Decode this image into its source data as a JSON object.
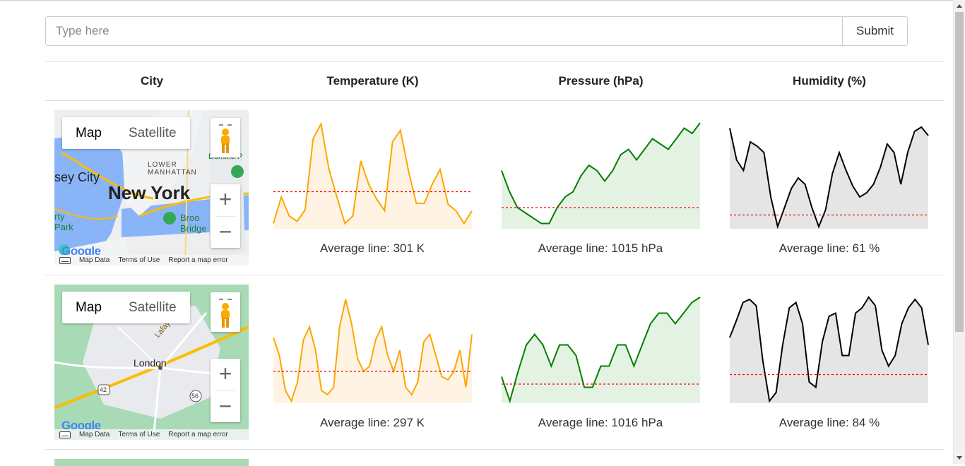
{
  "search": {
    "placeholder": "Type here",
    "value": ""
  },
  "submit_label": "Submit",
  "table": {
    "headers": [
      "City",
      "Temperature (K)",
      "Pressure (hPa)",
      "Humidity (%)"
    ]
  },
  "map_controls": {
    "map_label": "Map",
    "satellite_label": "Satellite",
    "zoom_in": "+",
    "zoom_out": "−",
    "footer": [
      "Map Data",
      "Terms of Use",
      "Report a map error"
    ],
    "logo": "Google"
  },
  "rows": [
    {
      "map_labels": {
        "city": "New York",
        "lower_manhattan": "LOWER\nMANHATTAN",
        "jersey": "sey City",
        "park": "rty\nPark",
        "bridge": "Broo\nBridge",
        "domino": "Domino P"
      },
      "temperature": {
        "caption": "Average line: 301 K",
        "average": 301
      },
      "pressure": {
        "caption": "Average line: 1015 hPa",
        "average": 1015
      },
      "humidity": {
        "caption": "Average line: 61 %",
        "average": 61
      }
    },
    {
      "map_labels": {
        "city": "London",
        "lafayette": "Lafayette",
        "route_42": "42",
        "route_56": "56"
      },
      "temperature": {
        "caption": "Average line: 297 K",
        "average": 297
      },
      "pressure": {
        "caption": "Average line: 1016 hPa",
        "average": 1016
      },
      "humidity": {
        "caption": "Average line: 84 %",
        "average": 84
      }
    }
  ],
  "chart_data": [
    {
      "type": "area",
      "title": "",
      "color": "#ffa500",
      "fill": "#fff4e3",
      "average": 301,
      "values": [
        0.05,
        0.3,
        0.12,
        0.07,
        0.18,
        0.85,
        0.99,
        0.56,
        0.3,
        0.05,
        0.12,
        0.64,
        0.42,
        0.28,
        0.17,
        0.82,
        0.93,
        0.55,
        0.24,
        0.24,
        0.42,
        0.56,
        0.23,
        0.17,
        0.05,
        0.17
      ]
    },
    {
      "type": "area",
      "title": "",
      "color": "#008000",
      "fill": "#e4f2e4",
      "average": 1015,
      "values": [
        0.55,
        0.35,
        0.2,
        0.15,
        0.1,
        0.05,
        0.05,
        0.2,
        0.3,
        0.35,
        0.5,
        0.6,
        0.55,
        0.45,
        0.55,
        0.7,
        0.75,
        0.65,
        0.75,
        0.85,
        0.8,
        0.75,
        0.85,
        0.95,
        0.9,
        1.0
      ]
    },
    {
      "type": "area",
      "title": "",
      "color": "#000000",
      "fill": "#e5e5e5",
      "average": 61,
      "values": [
        0.95,
        0.65,
        0.55,
        0.82,
        0.78,
        0.72,
        0.3,
        0.02,
        0.2,
        0.38,
        0.48,
        0.42,
        0.2,
        0.02,
        0.18,
        0.52,
        0.72,
        0.55,
        0.4,
        0.3,
        0.34,
        0.42,
        0.58,
        0.8,
        0.72,
        0.42,
        0.72,
        0.92,
        0.96,
        0.88
      ]
    },
    {
      "type": "area",
      "title": "",
      "color": "#ffa500",
      "fill": "#fff4e3",
      "average": 297,
      "values": [
        0.62,
        0.45,
        0.12,
        0.02,
        0.2,
        0.6,
        0.72,
        0.5,
        0.12,
        0.08,
        0.15,
        0.72,
        0.98,
        0.75,
        0.42,
        0.3,
        0.35,
        0.6,
        0.72,
        0.45,
        0.3,
        0.5,
        0.15,
        0.08,
        0.2,
        0.58,
        0.65,
        0.45,
        0.25,
        0.22,
        0.3,
        0.5,
        0.15,
        0.65
      ]
    },
    {
      "type": "area",
      "title": "",
      "color": "#008000",
      "fill": "#e4f2e4",
      "average": 1016,
      "values": [
        0.25,
        0.02,
        0.3,
        0.55,
        0.65,
        0.55,
        0.35,
        0.55,
        0.55,
        0.45,
        0.15,
        0.15,
        0.35,
        0.35,
        0.55,
        0.55,
        0.35,
        0.55,
        0.75,
        0.85,
        0.85,
        0.75,
        0.85,
        0.95,
        1.0
      ]
    },
    {
      "type": "area",
      "title": "",
      "color": "#000000",
      "fill": "#e5e5e5",
      "average": 84,
      "values": [
        0.62,
        0.78,
        0.95,
        0.98,
        0.92,
        0.4,
        0.02,
        0.1,
        0.55,
        0.9,
        0.95,
        0.75,
        0.2,
        0.15,
        0.58,
        0.82,
        0.85,
        0.45,
        0.45,
        0.85,
        0.9,
        1.0,
        0.92,
        0.5,
        0.35,
        0.45,
        0.75,
        0.9,
        0.98,
        0.9,
        0.55
      ]
    }
  ]
}
